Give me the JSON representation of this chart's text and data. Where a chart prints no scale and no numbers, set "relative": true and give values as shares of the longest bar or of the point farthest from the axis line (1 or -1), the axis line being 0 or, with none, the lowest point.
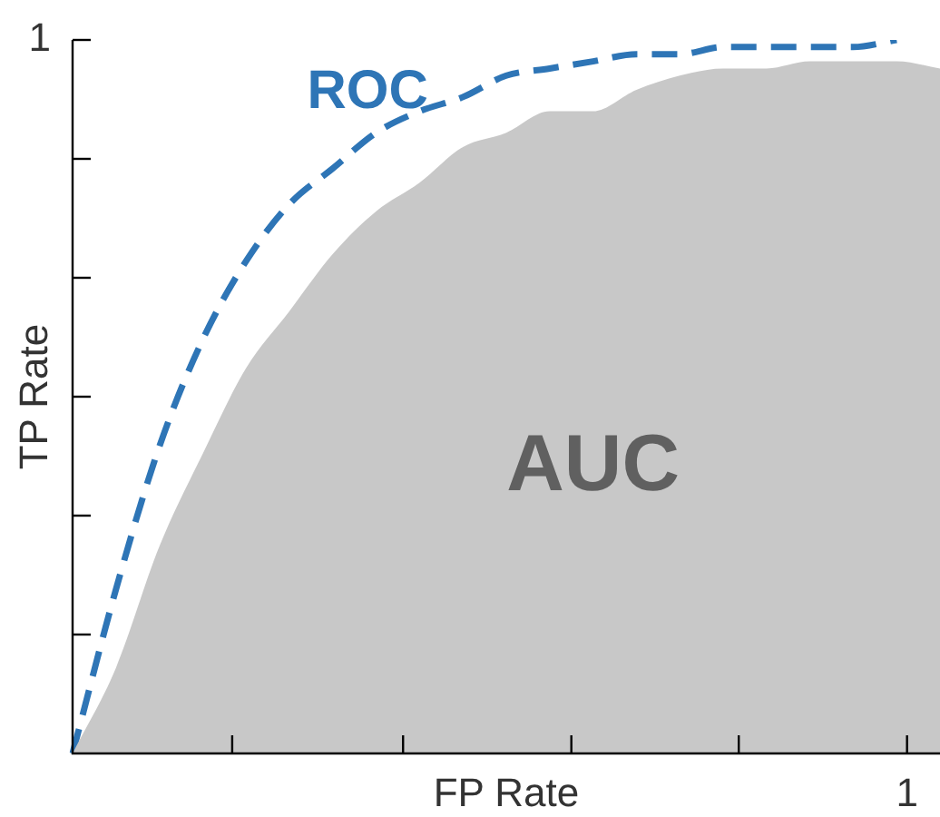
{
  "chart_data": {
    "type": "line",
    "relative": true,
    "xlabel": "FP Rate",
    "ylabel": "TP Rate",
    "grid": false,
    "legend": false,
    "categories": [
      null,
      null,
      null,
      null,
      null,
      null,
      null,
      null,
      null,
      null,
      null,
      null,
      null,
      null,
      null,
      null,
      null,
      null,
      null,
      null,
      null
    ],
    "series": [
      {
        "type": "area",
        "color": "#c8c8c8",
        "values": [
          0,
          0.12,
          0.29,
          0.42,
          0.54,
          0.62,
          0.7,
          0.76,
          0.8,
          0.85,
          0.87,
          0.9,
          0.9,
          0.93,
          0.95,
          0.96,
          0.96,
          0.97,
          0.97,
          0.97,
          0.96
        ]
      },
      {
        "type": "line",
        "color": "#2e75b6",
        "line_style": "dashed",
        "values": [
          0,
          0.23,
          0.43,
          0.58,
          0.69,
          0.77,
          0.82,
          0.87,
          0.9,
          0.92,
          0.95,
          0.96,
          0.97,
          0.98,
          0.98,
          0.99,
          0.99,
          0.99,
          0.99,
          1.0,
          null
        ]
      }
    ],
    "annotations": [
      "1",
      "1",
      "ROC",
      "AUC"
    ]
  }
}
